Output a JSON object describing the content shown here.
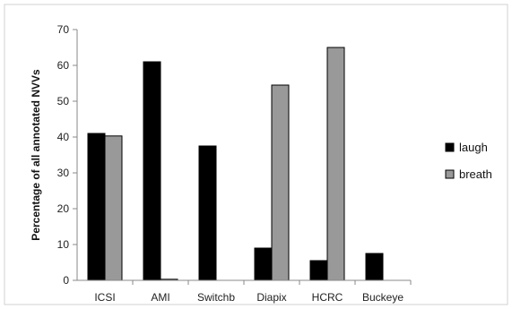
{
  "chart_data": {
    "type": "bar",
    "categories": [
      "ICSI",
      "AMI",
      "Switchb",
      "Diapix",
      "HCRC",
      "Buckeye"
    ],
    "series": [
      {
        "name": "laugh",
        "values": [
          41,
          61,
          37.5,
          9,
          5.5,
          7.5
        ],
        "color": "#000000"
      },
      {
        "name": "breath",
        "values": [
          40.3,
          0.3,
          0,
          54.5,
          65,
          0
        ],
        "color": "#999999"
      }
    ],
    "title": "",
    "xlabel": "",
    "ylabel": "Percentage of all annotated NVVs",
    "ylim": [
      0,
      70
    ],
    "yticks": [
      0,
      10,
      20,
      30,
      40,
      50,
      60,
      70
    ],
    "grid": false,
    "legend": "right"
  }
}
